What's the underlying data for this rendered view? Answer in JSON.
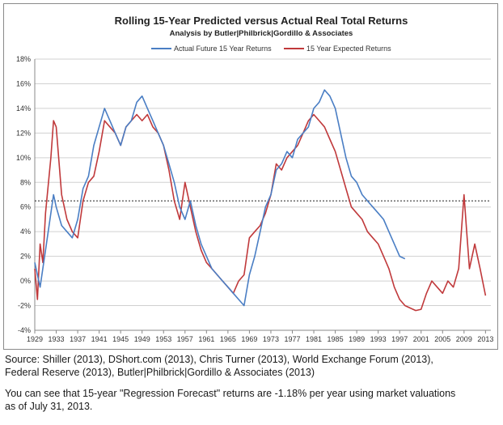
{
  "chart_data": {
    "type": "line",
    "title": "Rolling 15-Year Predicted versus Actual Real Total Returns",
    "subtitle": "Analysis by Butler|Philbrick|Gordillo & Associates",
    "xlabel": "",
    "ylabel": "",
    "xlim": [
      1929,
      2014
    ],
    "ylim": [
      -4,
      18
    ],
    "y_ticks": [
      -4,
      -2,
      0,
      2,
      4,
      6,
      8,
      10,
      12,
      14,
      16,
      18
    ],
    "y_tick_labels": [
      "-4%",
      "-2%",
      "0%",
      "2%",
      "4%",
      "6%",
      "8%",
      "10%",
      "12%",
      "14%",
      "16%",
      "18%"
    ],
    "x_ticks": [
      1929,
      1933,
      1937,
      1941,
      1945,
      1949,
      1953,
      1957,
      1961,
      1965,
      1969,
      1973,
      1977,
      1981,
      1985,
      1989,
      1993,
      1997,
      2001,
      2005,
      2009,
      2013
    ],
    "x_tick_labels": [
      "1929",
      "1933",
      "1937",
      "1941",
      "1945",
      "1949",
      "1953",
      "1957",
      "1961",
      "1965",
      "1969",
      "1973",
      "1977",
      "1981",
      "1985",
      "1989",
      "1993",
      "1997",
      "2001",
      "2005",
      "2009",
      "2013"
    ],
    "grid": "horizontal",
    "legend_position": "top-center",
    "reference_line": {
      "y": 6.5,
      "style": "dotted"
    },
    "series": [
      {
        "name": "Actual Future 15 Year Returns",
        "color": "#4a7ec4",
        "x": [
          1929,
          1930,
          1931,
          1932,
          1932.5,
          1933,
          1934,
          1935,
          1936,
          1937,
          1938,
          1939,
          1940,
          1941,
          1942,
          1943,
          1944,
          1945,
          1946,
          1947,
          1948,
          1949,
          1950,
          1951,
          1952,
          1953,
          1954,
          1955,
          1956,
          1957,
          1958,
          1959,
          1960,
          1961,
          1962,
          1963,
          1964,
          1965,
          1966,
          1967,
          1968,
          1969,
          1970,
          1971,
          1972,
          1973,
          1974,
          1975,
          1976,
          1977,
          1978,
          1979,
          1980,
          1981,
          1982,
          1983,
          1984,
          1985,
          1986,
          1987,
          1988,
          1989,
          1990,
          1991,
          1992,
          1993,
          1994,
          1995,
          1996,
          1997,
          1998
        ],
        "y": [
          1.5,
          -0.5,
          2.5,
          5.5,
          7.0,
          6.0,
          4.5,
          4.0,
          3.5,
          5.0,
          7.5,
          8.5,
          11.0,
          12.5,
          14.0,
          13.0,
          12.0,
          11.0,
          12.5,
          13.0,
          14.5,
          15.0,
          14.0,
          13.0,
          12.0,
          11.0,
          9.5,
          8.0,
          6.0,
          5.0,
          6.5,
          4.5,
          3.0,
          2.0,
          1.0,
          0.5,
          0.0,
          -0.5,
          -1.0,
          -1.5,
          -2.0,
          0.5,
          2.0,
          4.0,
          6.0,
          7.0,
          9.0,
          9.5,
          10.5,
          10.0,
          11.5,
          12.0,
          12.5,
          14.0,
          14.5,
          15.5,
          15.0,
          14.0,
          12.0,
          10.0,
          8.5,
          8.0,
          7.0,
          6.5,
          6.0,
          5.5,
          5.0,
          4.0,
          3.0,
          2.0,
          1.8
        ]
      },
      {
        "name": "15 Year Expected Returns",
        "color": "#c0393b",
        "x": [
          1929,
          1929.5,
          1930,
          1930.5,
          1931,
          1932,
          1932.5,
          1933,
          1934,
          1935,
          1936,
          1937,
          1938,
          1939,
          1940,
          1941,
          1942,
          1943,
          1944,
          1945,
          1946,
          1947,
          1948,
          1949,
          1950,
          1951,
          1952,
          1953,
          1954,
          1955,
          1956,
          1957,
          1958,
          1959,
          1960,
          1961,
          1962,
          1963,
          1964,
          1965,
          1966,
          1967,
          1968,
          1969,
          1970,
          1971,
          1972,
          1973,
          1974,
          1975,
          1976,
          1977,
          1978,
          1979,
          1980,
          1981,
          1982,
          1983,
          1984,
          1985,
          1986,
          1987,
          1988,
          1989,
          1990,
          1991,
          1992,
          1993,
          1994,
          1995,
          1996,
          1997,
          1998,
          1999,
          2000,
          2001,
          2002,
          2003,
          2004,
          2005,
          2006,
          2007,
          2008,
          2008.5,
          2009,
          2009.5,
          2010,
          2011,
          2012,
          2013
        ],
        "y": [
          1.0,
          -1.5,
          3.0,
          1.5,
          5.5,
          10.0,
          13.0,
          12.5,
          7.0,
          5.0,
          4.0,
          3.5,
          6.5,
          8.0,
          8.5,
          10.5,
          13.0,
          12.5,
          12.0,
          11.0,
          12.5,
          13.0,
          13.5,
          13.0,
          13.5,
          12.5,
          12.0,
          11.0,
          9.0,
          6.5,
          5.0,
          8.0,
          6.0,
          4.0,
          2.5,
          1.5,
          1.0,
          0.5,
          0.0,
          -0.5,
          -1.0,
          0.0,
          0.5,
          3.5,
          4.0,
          4.5,
          5.5,
          7.0,
          9.5,
          9.0,
          10.0,
          10.5,
          11.0,
          12.0,
          13.0,
          13.5,
          13.0,
          12.5,
          11.5,
          10.5,
          9.0,
          7.5,
          6.0,
          5.5,
          5.0,
          4.0,
          3.5,
          3.0,
          2.0,
          1.0,
          -0.5,
          -1.5,
          -2.0,
          -2.2,
          -2.4,
          -2.3,
          -1.0,
          0.0,
          -0.5,
          -1.0,
          0.0,
          -0.5,
          1.0,
          4.0,
          7.0,
          4.0,
          1.0,
          3.0,
          1.0,
          -1.18
        ]
      }
    ]
  },
  "caption": {
    "source_line1": "Source: Shiller (2013), DShort.com (2013), Chris Turner (2013), World Exchange Forum (2013),",
    "source_line2": "Federal Reserve (2013), Butler|Philbrick|Gordillo & Associates (2013)",
    "note_line1": "You can see that 15-year \"Regression Forecast\" returns are -1.18% per year using market valuations",
    "note_line2": "as of July 31, 2013."
  }
}
